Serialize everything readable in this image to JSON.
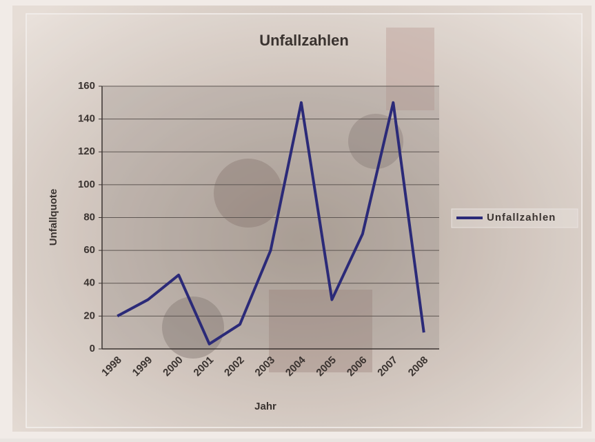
{
  "chart_data": {
    "type": "line",
    "title": "Unfallzahlen",
    "categories": [
      "1998",
      "1999",
      "2000",
      "2001",
      "2002",
      "2003",
      "2004",
      "2005",
      "2006",
      "2007",
      "2008"
    ],
    "series": [
      {
        "name": "Unfallzahlen",
        "color": "#2b2a78",
        "values": [
          20,
          30,
          45,
          3,
          15,
          60,
          150,
          30,
          70,
          150,
          10
        ]
      }
    ],
    "x_label": "Jahr",
    "y_label": "Unfallquote",
    "ylim": [
      0,
      160
    ],
    "yticks": [
      0,
      20,
      40,
      60,
      80,
      100,
      120,
      140,
      160
    ],
    "grid": true,
    "legend": "right"
  }
}
